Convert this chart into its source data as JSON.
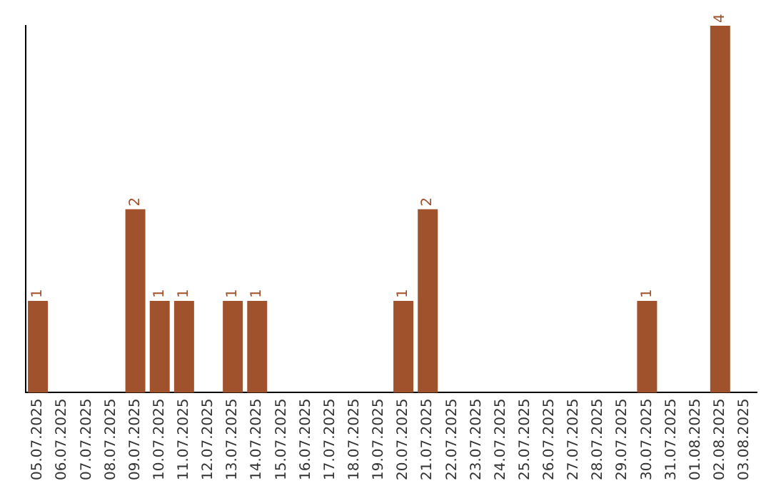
{
  "chart_data": {
    "type": "bar",
    "categories": [
      "05.07.2025",
      "06.07.2025",
      "07.07.2025",
      "08.07.2025",
      "09.07.2025",
      "10.07.2025",
      "11.07.2025",
      "12.07.2025",
      "13.07.2025",
      "14.07.2025",
      "15.07.2025",
      "16.07.2025",
      "17.07.2025",
      "18.07.2025",
      "19.07.2025",
      "20.07.2025",
      "21.07.2025",
      "22.07.2025",
      "23.07.2025",
      "24.07.2025",
      "25.07.2025",
      "26.07.2025",
      "27.07.2025",
      "28.07.2025",
      "29.07.2025",
      "30.07.2025",
      "31.07.2025",
      "01.08.2025",
      "02.08.2025",
      "03.08.2025"
    ],
    "values": [
      1,
      0,
      0,
      0,
      2,
      1,
      1,
      0,
      1,
      1,
      0,
      0,
      0,
      0,
      0,
      1,
      2,
      0,
      0,
      0,
      0,
      0,
      0,
      0,
      0,
      1,
      0,
      0,
      4,
      0
    ],
    "value_labels": [
      "1",
      null,
      null,
      null,
      "2",
      "1",
      "1",
      null,
      "1",
      "1",
      null,
      null,
      null,
      null,
      null,
      "1",
      "2",
      null,
      null,
      null,
      null,
      null,
      null,
      null,
      null,
      "1",
      null,
      null,
      "4",
      null
    ],
    "color": "#a0522d",
    "grid": false,
    "legend": false
  }
}
